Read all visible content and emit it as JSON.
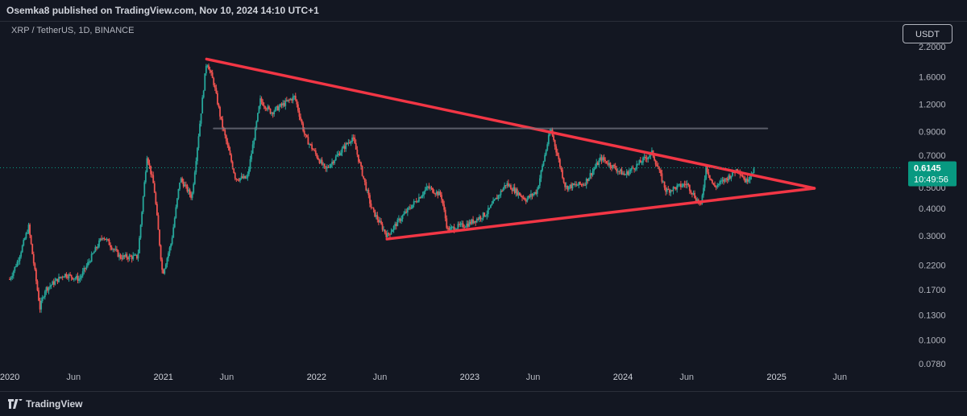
{
  "header": {
    "publisher": "Osemka8 published on TradingView.com, Nov 10, 2024 14:10 UTC+1"
  },
  "symbol": {
    "label": "XRP / TetherUS, 1D, BINANCE"
  },
  "currency_button": "USDT",
  "price_badge": {
    "price": "0.6145",
    "countdown": "10:49:56",
    "color": "#089981"
  },
  "footer": {
    "brand": "TradingView"
  },
  "colors": {
    "up": "#26a69a",
    "down": "#ef5350",
    "trendline": "#f23645",
    "resistance": "#787b86"
  },
  "chart_data": {
    "type": "candlestick",
    "title": "",
    "xlabel": "",
    "ylabel": "",
    "y_scale": "log",
    "ylim": [
      0.075,
      2.2
    ],
    "x_ticks": [
      "2020",
      "Jun",
      "2021",
      "Jun",
      "2022",
      "Jun",
      "2023",
      "Jun",
      "2024",
      "Jun",
      "2025",
      "Jun"
    ],
    "y_ticks": [
      "2.2000",
      "1.6000",
      "1.2000",
      "0.9000",
      "0.7000",
      "0.5000",
      "0.4000",
      "0.3000",
      "0.2200",
      "0.1700",
      "0.1300",
      "0.1000",
      "0.0780"
    ],
    "last_price": 0.6145,
    "price_path": [
      [
        "2020-01-01",
        0.19
      ],
      [
        "2020-01-20",
        0.23
      ],
      [
        "2020-02-15",
        0.33
      ],
      [
        "2020-03-13",
        0.14
      ],
      [
        "2020-03-25",
        0.17
      ],
      [
        "2020-05-10",
        0.2
      ],
      [
        "2020-06-15",
        0.19
      ],
      [
        "2020-08-10",
        0.3
      ],
      [
        "2020-09-20",
        0.24
      ],
      [
        "2020-11-01",
        0.24
      ],
      [
        "2020-11-23",
        0.7
      ],
      [
        "2020-12-10",
        0.5
      ],
      [
        "2020-12-30",
        0.2
      ],
      [
        "2021-01-20",
        0.28
      ],
      [
        "2021-02-10",
        0.55
      ],
      [
        "2021-03-10",
        0.45
      ],
      [
        "2021-04-14",
        1.9
      ],
      [
        "2021-05-01",
        1.5
      ],
      [
        "2021-05-19",
        1.0
      ],
      [
        "2021-06-22",
        0.55
      ],
      [
        "2021-07-20",
        0.55
      ],
      [
        "2021-08-20",
        1.25
      ],
      [
        "2021-09-15",
        1.1
      ],
      [
        "2021-11-10",
        1.3
      ],
      [
        "2021-12-05",
        0.85
      ],
      [
        "2022-01-22",
        0.6
      ],
      [
        "2022-03-28",
        0.85
      ],
      [
        "2022-05-12",
        0.4
      ],
      [
        "2022-06-18",
        0.3
      ],
      [
        "2022-07-20",
        0.36
      ],
      [
        "2022-09-23",
        0.5
      ],
      [
        "2022-10-25",
        0.46
      ],
      [
        "2022-11-09",
        0.32
      ],
      [
        "2022-12-28",
        0.34
      ],
      [
        "2023-02-10",
        0.38
      ],
      [
        "2023-03-29",
        0.52
      ],
      [
        "2023-05-15",
        0.44
      ],
      [
        "2023-06-10",
        0.48
      ],
      [
        "2023-07-13",
        0.93
      ],
      [
        "2023-08-17",
        0.5
      ],
      [
        "2023-10-01",
        0.52
      ],
      [
        "2023-11-10",
        0.68
      ],
      [
        "2024-01-05",
        0.57
      ],
      [
        "2024-03-11",
        0.72
      ],
      [
        "2024-04-13",
        0.48
      ],
      [
        "2024-06-01",
        0.52
      ],
      [
        "2024-07-05",
        0.41
      ],
      [
        "2024-07-17",
        0.62
      ],
      [
        "2024-08-05",
        0.5
      ],
      [
        "2024-09-05",
        0.55
      ],
      [
        "2024-10-01",
        0.61
      ],
      [
        "2024-10-20",
        0.53
      ],
      [
        "2024-11-10",
        0.6145
      ]
    ],
    "trendlines": [
      {
        "name": "upper-trendline",
        "points": [
          [
            "2021-04-14",
            1.93
          ],
          [
            "2025-04-01",
            0.495
          ]
        ]
      },
      {
        "name": "lower-trendline",
        "points": [
          [
            "2022-06-18",
            0.29
          ],
          [
            "2025-04-01",
            0.495
          ]
        ]
      },
      {
        "name": "resistance-level",
        "points": [
          [
            "2021-05-01",
            0.93
          ],
          [
            "2024-12-10",
            0.93
          ]
        ]
      }
    ]
  }
}
